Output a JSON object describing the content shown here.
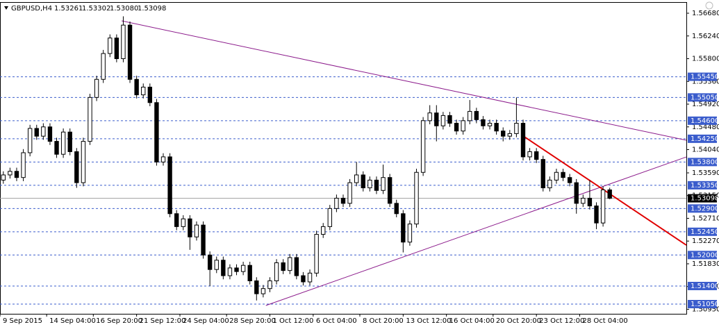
{
  "chart_data": {
    "type": "candlestick",
    "title": "GBPUSD,H4",
    "header_ohlc": [
      "1.53261",
      "1.53302",
      "1.53080",
      "1.53098"
    ],
    "xlim": [
      0,
      103
    ],
    "ylim": [
      1.50862,
      1.56882
    ],
    "xticks": [
      {
        "value": 0,
        "label": "9 Sep 2015"
      },
      {
        "value": 7,
        "label": "14 Sep 04:00"
      },
      {
        "value": 14,
        "label": "16 Sep 20:00"
      },
      {
        "value": 20.5,
        "label": "21 Sep 12:00"
      },
      {
        "value": 27,
        "label": "24 Sep 04:00"
      },
      {
        "value": 34,
        "label": "28 Sep 20:00"
      },
      {
        "value": 40.5,
        "label": "1 Oct 12:00"
      },
      {
        "value": 47,
        "label": "6 Oct 04:00"
      },
      {
        "value": 54,
        "label": "8 Oct 20:00"
      },
      {
        "value": 60.5,
        "label": "13 Oct 12:00"
      },
      {
        "value": 67,
        "label": "16 Oct 04:00"
      },
      {
        "value": 74,
        "label": "20 Oct 20:00"
      },
      {
        "value": 80.5,
        "label": "23 Oct 12:00"
      },
      {
        "value": 87,
        "label": "28 Oct 04:00"
      }
    ],
    "yticks": [
      {
        "value": 1.5668,
        "label": "1.56680"
      },
      {
        "value": 1.5624,
        "label": "1.56240"
      },
      {
        "value": 1.558,
        "label": "1.55800"
      },
      {
        "value": 1.5536,
        "label": "1.55360"
      },
      {
        "value": 1.5492,
        "label": "1.54920"
      },
      {
        "value": 1.5448,
        "label": "1.54480"
      },
      {
        "value": 1.5404,
        "label": "1.54040"
      },
      {
        "value": 1.5359,
        "label": "1.53590"
      },
      {
        "value": 1.5315,
        "label": "1.53150"
      },
      {
        "value": 1.5271,
        "label": "1.52710"
      },
      {
        "value": 1.5227,
        "label": "1.52270"
      },
      {
        "value": 1.5183,
        "label": "1.51830"
      },
      {
        "value": 1.5139,
        "label": "1.51390"
      },
      {
        "value": 1.5095,
        "label": "1.50950"
      }
    ],
    "levels": [
      {
        "value": 1.5545,
        "label": "1.55450"
      },
      {
        "value": 1.5505,
        "label": "1.55050"
      },
      {
        "value": 1.546,
        "label": "1.54600"
      },
      {
        "value": 1.5425,
        "label": "1.54250"
      },
      {
        "value": 1.538,
        "label": "1.53800"
      },
      {
        "value": 1.5335,
        "label": "1.53350"
      },
      {
        "value": 1.529,
        "label": "1.52900"
      },
      {
        "value": 1.5245,
        "label": "1.52450"
      },
      {
        "value": 1.52,
        "label": "1.52000"
      },
      {
        "value": 1.514,
        "label": "1.51400"
      },
      {
        "value": 1.5105,
        "label": "1.51050"
      }
    ],
    "level_color": "#3a5ccc",
    "current_price": {
      "value": 1.53098,
      "label": "1.53098"
    },
    "trendlines": [
      {
        "x": [
          18.25,
          103
        ],
        "y": [
          1.56532,
          1.54221
        ],
        "color": "#8b1a8b",
        "width": 1
      },
      {
        "x": [
          39.9,
          103
        ],
        "y": [
          1.51023,
          1.53898
        ],
        "color": "#8b1a8b",
        "width": 1
      },
      {
        "x": [
          78.7,
          103
        ],
        "y": [
          1.54288,
          1.52192
        ],
        "color": "#e00000",
        "width": 2
      }
    ],
    "open": [
      1.5345,
      1.5355,
      1.5362,
      1.535,
      1.5398,
      1.5445,
      1.543,
      1.5448,
      1.542,
      1.5395,
      1.5438,
      1.54,
      1.534,
      1.542,
      1.5505,
      1.554,
      1.559,
      1.562,
      1.558,
      1.5645,
      1.554,
      1.551,
      1.5525,
      1.5495,
      1.538,
      1.539,
      1.528,
      1.5255,
      1.527,
      1.5235,
      1.5258,
      1.52,
      1.5172,
      1.519,
      1.516,
      1.5175,
      1.5168,
      1.518,
      1.515,
      1.5125,
      1.5135,
      1.515,
      1.5185,
      1.517,
      1.5195,
      1.516,
      1.5148,
      1.5165,
      1.524,
      1.5255,
      1.529,
      1.531,
      1.53,
      1.534,
      1.5355,
      1.533,
      1.5345,
      1.5325,
      1.535,
      1.53,
      1.528,
      1.5225,
      1.526,
      1.536,
      1.546,
      1.5475,
      1.545,
      1.547,
      1.5455,
      1.544,
      1.546,
      1.5478,
      1.5462,
      1.545,
      1.5455,
      1.544,
      1.543,
      1.5435,
      1.5455,
      1.539,
      1.54,
      1.5385,
      1.533,
      1.5345,
      1.536,
      1.535,
      1.534,
      1.53,
      1.531,
      1.5295,
      1.5262,
      1.53261
    ],
    "high": [
      1.5362,
      1.5369,
      1.5369,
      1.5405,
      1.5452,
      1.5452,
      1.5455,
      1.5455,
      1.5427,
      1.5445,
      1.5445,
      1.5407,
      1.5427,
      1.5512,
      1.5547,
      1.5597,
      1.5627,
      1.5627,
      1.5662,
      1.5652,
      1.5547,
      1.5532,
      1.5532,
      1.5502,
      1.5397,
      1.5397,
      1.5287,
      1.5277,
      1.5277,
      1.5265,
      1.5265,
      1.5207,
      1.5197,
      1.5197,
      1.5182,
      1.5182,
      1.5187,
      1.5187,
      1.5157,
      1.5142,
      1.5157,
      1.5192,
      1.5192,
      1.5202,
      1.5202,
      1.5167,
      1.5172,
      1.5247,
      1.5262,
      1.5297,
      1.5317,
      1.5317,
      1.5347,
      1.538,
      1.5362,
      1.5352,
      1.5352,
      1.5375,
      1.5357,
      1.5307,
      1.5287,
      1.5267,
      1.5367,
      1.5467,
      1.549,
      1.549,
      1.5477,
      1.5477,
      1.5462,
      1.5467,
      1.55,
      1.5485,
      1.5469,
      1.5462,
      1.5462,
      1.5447,
      1.5442,
      1.5505,
      1.5462,
      1.5407,
      1.5407,
      1.5392,
      1.5352,
      1.5367,
      1.5367,
      1.5357,
      1.5347,
      1.5317,
      1.5345,
      1.5302,
      1.5333,
      1.53302
    ],
    "low": [
      1.5338,
      1.5348,
      1.5343,
      1.5343,
      1.5391,
      1.5423,
      1.5423,
      1.5413,
      1.5388,
      1.5388,
      1.5393,
      1.533,
      1.5333,
      1.5413,
      1.5498,
      1.5533,
      1.5583,
      1.5573,
      1.5573,
      1.5533,
      1.5503,
      1.5503,
      1.5488,
      1.5373,
      1.5373,
      1.5273,
      1.5248,
      1.5248,
      1.521,
      1.5228,
      1.5193,
      1.514,
      1.5165,
      1.5153,
      1.5153,
      1.5161,
      1.5161,
      1.5143,
      1.5112,
      1.5118,
      1.5128,
      1.5143,
      1.5163,
      1.5163,
      1.5153,
      1.5141,
      1.5141,
      1.5158,
      1.5233,
      1.5248,
      1.5283,
      1.5293,
      1.5293,
      1.5333,
      1.5323,
      1.5323,
      1.5318,
      1.5318,
      1.5293,
      1.5273,
      1.5205,
      1.5218,
      1.5253,
      1.5353,
      1.5453,
      1.542,
      1.5443,
      1.5448,
      1.5433,
      1.5433,
      1.5453,
      1.5455,
      1.5443,
      1.5443,
      1.5433,
      1.542,
      1.5423,
      1.5428,
      1.5383,
      1.5383,
      1.5378,
      1.5323,
      1.5323,
      1.5338,
      1.5343,
      1.5333,
      1.528,
      1.5293,
      1.5288,
      1.525,
      1.5255,
      1.5308
    ],
    "close": [
      1.5355,
      1.5362,
      1.535,
      1.5398,
      1.5445,
      1.543,
      1.5448,
      1.542,
      1.5395,
      1.5438,
      1.54,
      1.534,
      1.542,
      1.5505,
      1.554,
      1.559,
      1.562,
      1.558,
      1.5645,
      1.554,
      1.551,
      1.5525,
      1.5495,
      1.538,
      1.539,
      1.528,
      1.5255,
      1.527,
      1.5235,
      1.5258,
      1.52,
      1.5172,
      1.519,
      1.516,
      1.5175,
      1.5168,
      1.518,
      1.515,
      1.5125,
      1.5135,
      1.515,
      1.5185,
      1.517,
      1.5195,
      1.516,
      1.5148,
      1.5165,
      1.524,
      1.5255,
      1.529,
      1.531,
      1.53,
      1.534,
      1.5355,
      1.533,
      1.5345,
      1.5325,
      1.535,
      1.53,
      1.528,
      1.5225,
      1.526,
      1.536,
      1.546,
      1.5475,
      1.545,
      1.547,
      1.5455,
      1.544,
      1.546,
      1.5478,
      1.5462,
      1.545,
      1.5455,
      1.544,
      1.543,
      1.5435,
      1.5455,
      1.539,
      1.54,
      1.5385,
      1.533,
      1.5345,
      1.536,
      1.535,
      1.534,
      1.53,
      1.531,
      1.5295,
      1.5262,
      1.5326,
      1.53098
    ],
    "color": "#000000"
  }
}
